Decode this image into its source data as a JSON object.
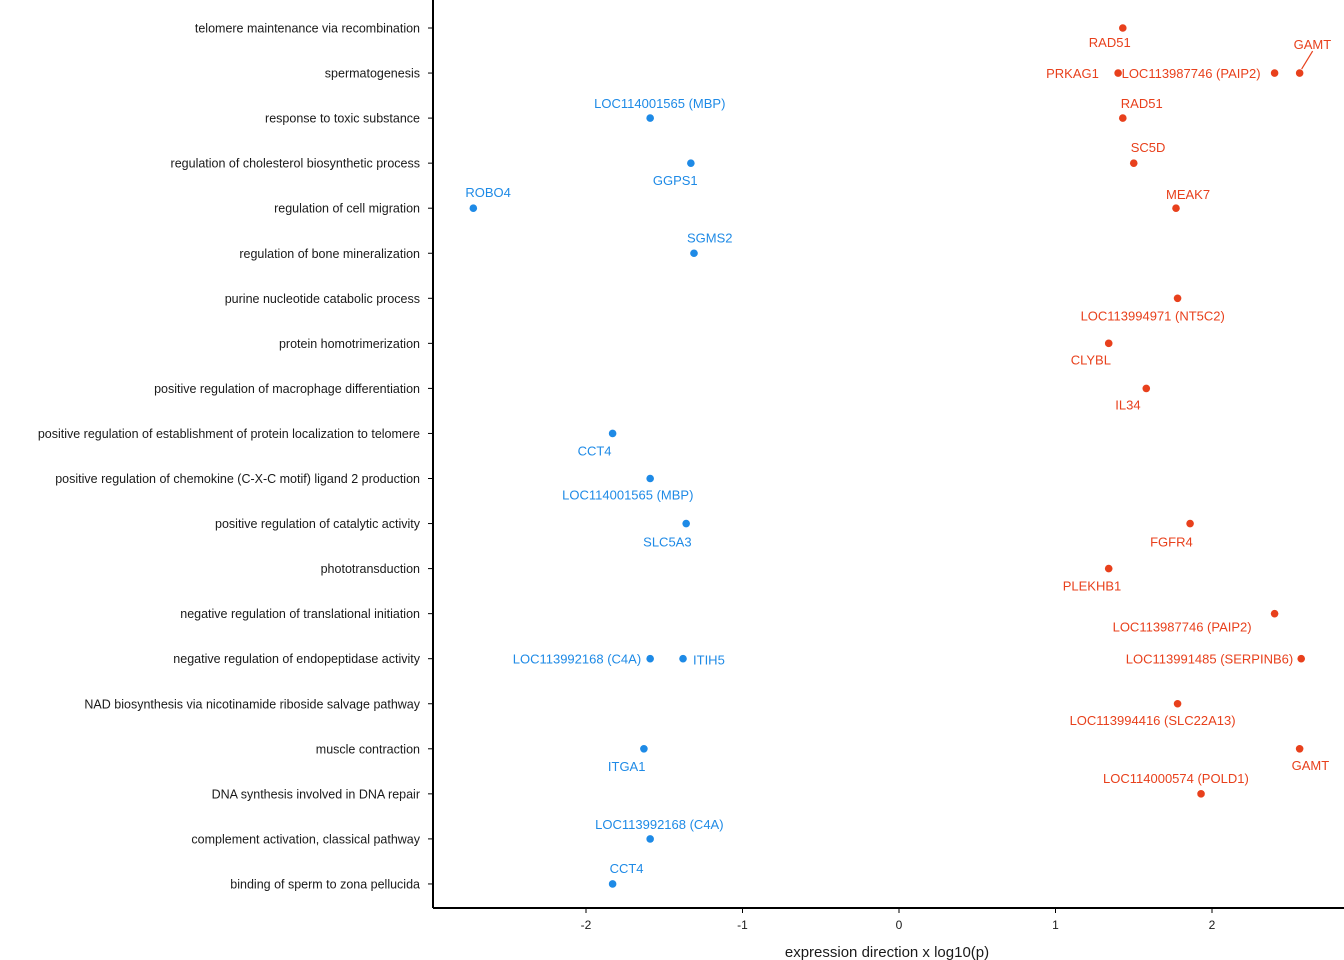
{
  "chart_data": {
    "type": "scatter",
    "xlabel": "expression direction x log10(p)",
    "ylabel": "",
    "xlim": [
      -2.9,
      2.9
    ],
    "x_ticks": [
      -2,
      -1,
      0,
      1,
      2
    ],
    "grid": false,
    "colors": {
      "up": "#E8401C",
      "down": "#1E8AE6"
    },
    "categories": [
      "telomere maintenance via recombination",
      "spermatogenesis",
      "response to toxic substance",
      "regulation of cholesterol biosynthetic process",
      "regulation of cell migration",
      "regulation of bone mineralization",
      "purine nucleotide catabolic process",
      "protein homotrimerization",
      "positive regulation of macrophage differentiation",
      "positive regulation of establishment of protein localization to telomere",
      "positive regulation of chemokine (C-X-C motif) ligand 2 production",
      "positive regulation of catalytic activity",
      "phototransduction",
      "negative regulation of translational initiation",
      "negative regulation of endopeptidase activity",
      "NAD biosynthesis via nicotinamide riboside salvage pathway",
      "muscle contraction",
      "DNA synthesis involved in DNA repair",
      "complement activation, classical pathway",
      "binding of sperm to zona pellucida"
    ],
    "points": [
      {
        "category": 0,
        "x": 1.43,
        "label": "RAD51",
        "direction": "up"
      },
      {
        "category": 1,
        "x": 1.4,
        "label": "PRKAG1",
        "direction": "up"
      },
      {
        "category": 1,
        "x": 2.4,
        "label": "LOC113987746 (PAIP2)",
        "direction": "up"
      },
      {
        "category": 1,
        "x": 2.56,
        "label": "GAMT",
        "direction": "up"
      },
      {
        "category": 2,
        "x": -1.59,
        "label": "LOC114001565 (MBP)",
        "direction": "down"
      },
      {
        "category": 2,
        "x": 1.43,
        "label": "RAD51",
        "direction": "up"
      },
      {
        "category": 3,
        "x": -1.33,
        "label": "GGPS1",
        "direction": "down"
      },
      {
        "category": 3,
        "x": 1.5,
        "label": "SC5D",
        "direction": "up"
      },
      {
        "category": 4,
        "x": -2.72,
        "label": "ROBO4",
        "direction": "down"
      },
      {
        "category": 4,
        "x": 1.77,
        "label": "MEAK7",
        "direction": "up"
      },
      {
        "category": 5,
        "x": -1.31,
        "label": "SGMS2",
        "direction": "down"
      },
      {
        "category": 6,
        "x": 1.78,
        "label": "LOC113994971 (NT5C2)",
        "direction": "up"
      },
      {
        "category": 7,
        "x": 1.34,
        "label": "CLYBL",
        "direction": "up"
      },
      {
        "category": 8,
        "x": 1.58,
        "label": "IL34",
        "direction": "up"
      },
      {
        "category": 9,
        "x": -1.83,
        "label": "CCT4",
        "direction": "down"
      },
      {
        "category": 10,
        "x": -1.59,
        "label": "LOC114001565 (MBP)",
        "direction": "down"
      },
      {
        "category": 11,
        "x": -1.36,
        "label": "SLC5A3",
        "direction": "down"
      },
      {
        "category": 11,
        "x": 1.86,
        "label": "FGFR4",
        "direction": "up"
      },
      {
        "category": 12,
        "x": 1.34,
        "label": "PLEKHB1",
        "direction": "up"
      },
      {
        "category": 13,
        "x": 2.4,
        "label": "LOC113987746 (PAIP2)",
        "direction": "up"
      },
      {
        "category": 14,
        "x": -1.59,
        "label": "LOC113992168 (C4A)",
        "direction": "down"
      },
      {
        "category": 14,
        "x": -1.38,
        "label": "ITIH5",
        "direction": "down"
      },
      {
        "category": 14,
        "x": 2.57,
        "label": "LOC113991485 (SERPINB6)",
        "direction": "up"
      },
      {
        "category": 15,
        "x": 1.78,
        "label": "LOC113994416 (SLC22A13)",
        "direction": "up"
      },
      {
        "category": 16,
        "x": -1.63,
        "label": "ITGA1",
        "direction": "down"
      },
      {
        "category": 16,
        "x": 2.56,
        "label": "GAMT",
        "direction": "up"
      },
      {
        "category": 17,
        "x": 1.93,
        "label": "LOC114000574 (POLD1)",
        "direction": "up"
      },
      {
        "category": 18,
        "x": -1.59,
        "label": "LOC113992168 (C4A)",
        "direction": "down"
      },
      {
        "category": 19,
        "x": -1.83,
        "label": "CCT4",
        "direction": "down"
      }
    ]
  }
}
